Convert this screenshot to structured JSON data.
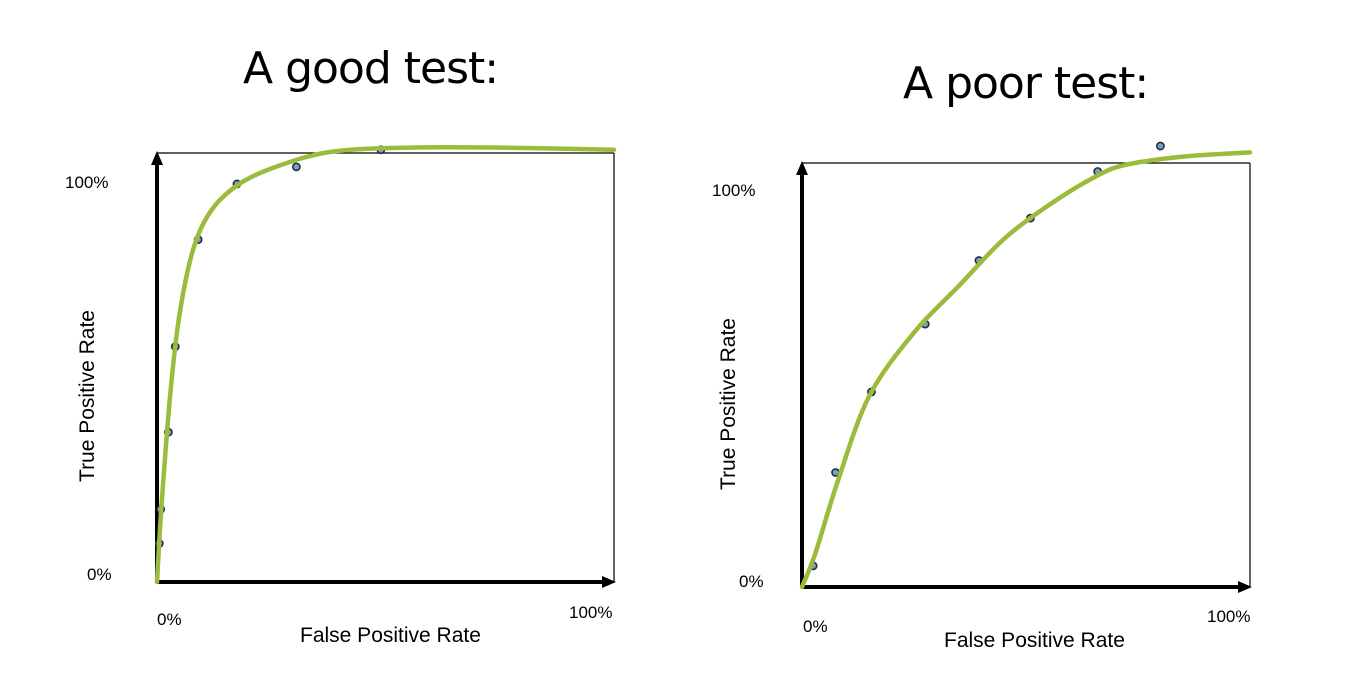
{
  "chart_data": [
    {
      "type": "line",
      "title": "A good test:",
      "xlabel": "False Positive Rate",
      "ylabel": "True Positive Rate",
      "xlim": [
        0,
        100
      ],
      "ylim": [
        0,
        100
      ],
      "x_tick_labels": [
        "0%",
        "100%"
      ],
      "y_tick_labels": [
        "0%",
        "100%"
      ],
      "grid": false,
      "colors": {
        "curve": "#9bbb3c",
        "points": "#1f2f4a",
        "point_fill": "#7f9db9",
        "axes": "#000000"
      },
      "points": [
        {
          "x": 0.5,
          "y": 9
        },
        {
          "x": 0.8,
          "y": 17
        },
        {
          "x": 2.5,
          "y": 35
        },
        {
          "x": 4.0,
          "y": 55
        },
        {
          "x": 9.0,
          "y": 80
        },
        {
          "x": 17.5,
          "y": 93
        },
        {
          "x": 30.5,
          "y": 97
        },
        {
          "x": 49.0,
          "y": 101
        }
      ],
      "curve": [
        {
          "x": 0,
          "y": 0
        },
        {
          "x": 1,
          "y": 18
        },
        {
          "x": 3,
          "y": 45
        },
        {
          "x": 5,
          "y": 63
        },
        {
          "x": 8,
          "y": 78
        },
        {
          "x": 12,
          "y": 87
        },
        {
          "x": 18,
          "y": 93
        },
        {
          "x": 26,
          "y": 97
        },
        {
          "x": 38,
          "y": 100.5
        },
        {
          "x": 55,
          "y": 101.5
        },
        {
          "x": 75,
          "y": 101.5
        },
        {
          "x": 100,
          "y": 101
        }
      ]
    },
    {
      "type": "line",
      "title": "A poor test:",
      "xlabel": "False Positive Rate",
      "ylabel": "True Positive Rate",
      "xlim": [
        0,
        100
      ],
      "ylim": [
        0,
        100
      ],
      "x_tick_labels": [
        "0%",
        "100%"
      ],
      "y_tick_labels": [
        "0%",
        "100%"
      ],
      "grid": false,
      "colors": {
        "curve": "#9bbb3c",
        "points": "#1f2f4a",
        "point_fill": "#7f9db9",
        "axes": "#000000"
      },
      "points": [
        {
          "x": 2.5,
          "y": 5
        },
        {
          "x": 7.5,
          "y": 27
        },
        {
          "x": 15.5,
          "y": 46
        },
        {
          "x": 27.5,
          "y": 62
        },
        {
          "x": 39.5,
          "y": 77
        },
        {
          "x": 51,
          "y": 87
        },
        {
          "x": 66,
          "y": 98
        },
        {
          "x": 80,
          "y": 104
        }
      ],
      "curve": [
        {
          "x": 0,
          "y": 0
        },
        {
          "x": 3,
          "y": 8
        },
        {
          "x": 8,
          "y": 25
        },
        {
          "x": 15,
          "y": 45
        },
        {
          "x": 25,
          "y": 60
        },
        {
          "x": 35,
          "y": 71
        },
        {
          "x": 45,
          "y": 82
        },
        {
          "x": 55,
          "y": 90
        },
        {
          "x": 65,
          "y": 96.5
        },
        {
          "x": 72,
          "y": 99.5
        },
        {
          "x": 85,
          "y": 101.5
        },
        {
          "x": 100,
          "y": 102.5
        }
      ]
    }
  ]
}
